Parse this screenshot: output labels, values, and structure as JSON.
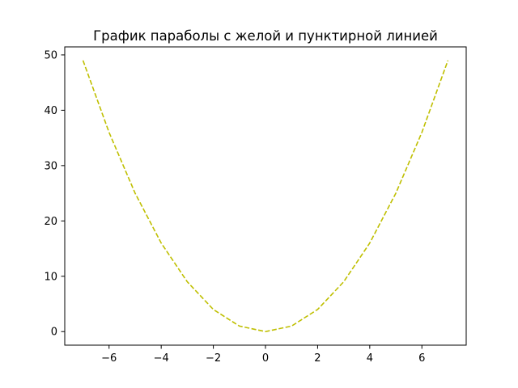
{
  "chart_data": {
    "type": "line",
    "title": "График параболы с желой и пунктирной линией",
    "xlabel": "",
    "ylabel": "",
    "xlim": [
      -7.7,
      7.7
    ],
    "ylim": [
      -2.45,
      51.45
    ],
    "xticks": [
      -6,
      -4,
      -2,
      0,
      2,
      4,
      6
    ],
    "xtick_labels": [
      "−6",
      "−4",
      "−2",
      "0",
      "2",
      "4",
      "6"
    ],
    "yticks": [
      0,
      10,
      20,
      30,
      40,
      50
    ],
    "ytick_labels": [
      "0",
      "10",
      "20",
      "30",
      "40",
      "50"
    ],
    "grid": false,
    "legend": "none",
    "series": [
      {
        "color": "#bfbf00",
        "line_style": "dashed",
        "x": [
          -7,
          -6,
          -5,
          -4,
          -3,
          -2,
          -1,
          0,
          1,
          2,
          3,
          4,
          5,
          6,
          7
        ],
        "y": [
          49,
          36,
          25,
          16,
          9,
          4,
          1,
          0,
          1,
          4,
          9,
          16,
          25,
          36,
          49
        ]
      }
    ]
  }
}
